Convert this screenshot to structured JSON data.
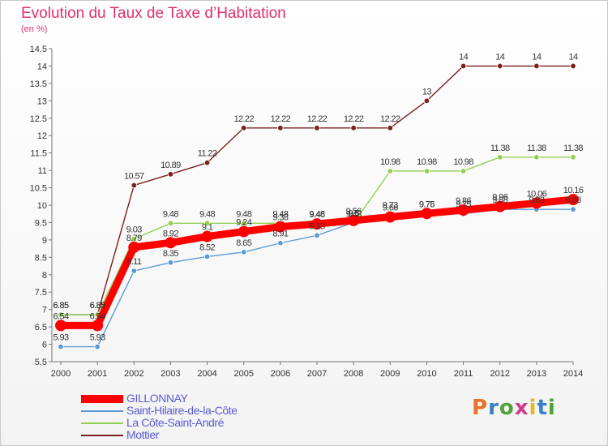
{
  "title": "Evolution du Taux de Taxe d’Habitation",
  "unit": "(en %)",
  "logo": {
    "text": "Proxiti",
    "colors": [
      "#e8732a",
      "#3a7fc4",
      "#4fa33a",
      "#d33a8c",
      "#e8b62a",
      "#3a7fc4",
      "#4fa33a"
    ]
  },
  "chart_data": {
    "type": "line",
    "x": [
      "2000",
      "2001",
      "2002",
      "2003",
      "2004",
      "2005",
      "2006",
      "2007",
      "2008",
      "2009",
      "2010",
      "2011",
      "2012",
      "2013",
      "2014"
    ],
    "ylim": [
      5.5,
      14.5
    ],
    "yticks": [
      "5.5",
      "6",
      "6.5",
      "7",
      "7.5",
      "8",
      "8.5",
      "9",
      "9.5",
      "10",
      "10.5",
      "11",
      "11.5",
      "12",
      "12.5",
      "13",
      "13.5",
      "14",
      "14.5"
    ],
    "grid": false,
    "legend_position": "bottom-left",
    "series": [
      {
        "name": "GILLONNAY",
        "color": "#ff0000",
        "values": [
          6.54,
          6.54,
          8.79,
          8.92,
          9.1,
          9.24,
          9.38,
          9.46,
          9.56,
          9.66,
          9.76,
          9.86,
          9.96,
          10.06,
          10.16
        ],
        "labels": [
          "6.54",
          "6.54",
          "8.79",
          "8.92",
          "9.1",
          "9.24",
          "9.38",
          "9.46",
          "9.56",
          "9.66",
          "9.76",
          "9.86",
          "9.96",
          "10.06",
          "10.16"
        ]
      },
      {
        "name": "Saint-Hilaire-de-la-Côte",
        "color": "#5b9bd5",
        "values": [
          5.93,
          5.93,
          8.11,
          8.35,
          8.52,
          8.65,
          8.91,
          9.13,
          9.5,
          9.73,
          9.75,
          9.75,
          9.88,
          9.88,
          9.88
        ],
        "labels": [
          "5.93",
          "5.93",
          "8.11",
          "8.35",
          "8.52",
          "8.65",
          "8.91",
          "9.13",
          "9.5",
          "9.73",
          "9.75",
          "9.75",
          "9.88",
          "9.88",
          "9.88"
        ]
      },
      {
        "name": "La Côte-Saint-André",
        "color": "#92d050",
        "values": [
          6.85,
          6.85,
          9.03,
          9.48,
          9.48,
          9.48,
          9.48,
          9.48,
          9.48,
          10.98,
          10.98,
          10.98,
          11.38,
          11.38,
          11.38
        ],
        "labels": [
          "6.85",
          "6.85",
          "9.03",
          "9.48",
          "9.48",
          "9.48",
          "9.48",
          "9.48",
          "9.48",
          "10.98",
          "10.98",
          "10.98",
          "11.38",
          "11.38",
          "11.38"
        ]
      },
      {
        "name": "Mottier",
        "color": "#7b1f1f",
        "values": [
          6.85,
          6.85,
          10.57,
          10.89,
          11.22,
          12.22,
          12.22,
          12.22,
          12.22,
          12.22,
          13.0,
          14.0,
          14.0,
          14.0,
          14.0
        ],
        "labels": [
          "6.85",
          "6.85",
          "10.57",
          "10.89",
          "11.22",
          "12.22",
          "12.22",
          "12.22",
          "12.22",
          "12.22",
          "13",
          "14",
          "14",
          "14",
          "14"
        ]
      }
    ]
  }
}
